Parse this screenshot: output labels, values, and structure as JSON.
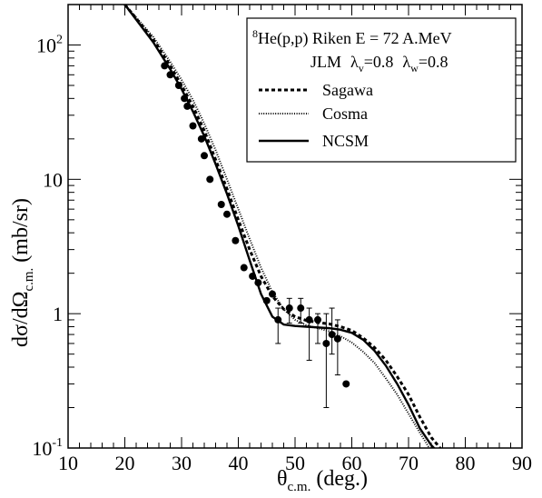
{
  "chart_data": {
    "type": "line",
    "title": "",
    "xlabel": "θc.m. (deg.)",
    "xlabel_main": "θ",
    "xlabel_sub": "c.m.",
    "xlabel_tail": " (deg.)",
    "ylabel": "dσ/dΩc.m. (mb/sr)",
    "ylabel_main": "dσ/dΩ",
    "ylabel_sub": "c.m.",
    "ylabel_tail": "  (mb/sr)",
    "xlim": [
      10,
      90
    ],
    "ylim": [
      0.1,
      200
    ],
    "yscale": "log",
    "x_ticks": [
      "10",
      "20",
      "30",
      "40",
      "50",
      "60",
      "70",
      "80",
      "90"
    ],
    "y_ticks": [
      {
        "value": 0.1,
        "base": "10",
        "exp": "-1"
      },
      {
        "value": 1,
        "base": "1",
        "exp": ""
      },
      {
        "value": 10,
        "base": "10",
        "exp": ""
      },
      {
        "value": 100,
        "base": "10",
        "exp": "2"
      }
    ],
    "legend": {
      "position": "top-right",
      "line1_sup": "8",
      "line1_text": "He(p,p) Riken  E = 72 A.MeV",
      "line2_jlm": "JLM",
      "line2_lv": "λ",
      "line2_lv_sub": "v",
      "line2_lv_val": "=0.8",
      "line2_lw": "λ",
      "line2_lw_sub": "w",
      "line2_lw_val": "=0.8"
    },
    "series": [
      {
        "name": "Sagawa",
        "style": "dashed",
        "x": [
          20,
          25,
          28,
          30,
          32,
          34,
          36,
          38,
          40,
          42,
          44,
          46,
          48,
          50,
          52,
          54,
          56,
          58,
          60,
          62,
          64,
          66,
          68,
          70,
          72,
          74,
          76
        ],
        "y": [
          200,
          110,
          70,
          50,
          35,
          23,
          14,
          8.5,
          5,
          3.0,
          1.9,
          1.35,
          1.08,
          0.95,
          0.89,
          0.86,
          0.84,
          0.8,
          0.75,
          0.66,
          0.56,
          0.45,
          0.34,
          0.25,
          0.17,
          0.12,
          0.095
        ]
      },
      {
        "name": "Cosma",
        "style": "dotted",
        "x": [
          20,
          25,
          28,
          30,
          32,
          34,
          36,
          38,
          40,
          42,
          44,
          46,
          48,
          50,
          52,
          54,
          56,
          58,
          60,
          62,
          64,
          66,
          68,
          70,
          72,
          74
        ],
        "y": [
          200,
          115,
          75,
          55,
          39,
          26,
          16.5,
          10,
          6,
          3.6,
          2.2,
          1.45,
          1.08,
          0.9,
          0.82,
          0.78,
          0.74,
          0.68,
          0.61,
          0.52,
          0.43,
          0.33,
          0.25,
          0.18,
          0.13,
          0.095
        ]
      },
      {
        "name": "NCSM",
        "style": "solid",
        "x": [
          20,
          25,
          28,
          30,
          32,
          34,
          36,
          38,
          40,
          42,
          44,
          46,
          48,
          50,
          52,
          54,
          56,
          58,
          60,
          62,
          64,
          66,
          68,
          70,
          72,
          74,
          75
        ],
        "y": [
          200,
          105,
          66,
          47,
          32,
          21,
          13,
          7.8,
          4.5,
          2.5,
          1.4,
          0.95,
          0.83,
          0.81,
          0.8,
          0.79,
          0.78,
          0.76,
          0.72,
          0.64,
          0.53,
          0.41,
          0.3,
          0.21,
          0.14,
          0.105,
          0.095
        ]
      }
    ],
    "data_points": {
      "name": "Riken data",
      "points": [
        {
          "x": 27,
          "y": 70
        },
        {
          "x": 28,
          "y": 60
        },
        {
          "x": 29.5,
          "y": 50
        },
        {
          "x": 30.5,
          "y": 40
        },
        {
          "x": 31,
          "y": 35
        },
        {
          "x": 32,
          "y": 25
        },
        {
          "x": 33.5,
          "y": 20
        },
        {
          "x": 34,
          "y": 15
        },
        {
          "x": 35,
          "y": 10
        },
        {
          "x": 37,
          "y": 6.5
        },
        {
          "x": 38,
          "y": 5.5
        },
        {
          "x": 39.5,
          "y": 3.5
        },
        {
          "x": 41,
          "y": 2.2
        },
        {
          "x": 42.5,
          "y": 1.9
        },
        {
          "x": 43.5,
          "y": 1.7
        },
        {
          "x": 45,
          "y": 1.25
        },
        {
          "x": 46,
          "y": 1.4
        },
        {
          "x": 47,
          "y": 0.9,
          "err_lo": 0.6,
          "err_hi": 1.1
        },
        {
          "x": 49,
          "y": 1.1,
          "err_lo": 0.85,
          "err_hi": 1.3
        },
        {
          "x": 51,
          "y": 1.1,
          "err_lo": 0.85,
          "err_hi": 1.3
        },
        {
          "x": 52.5,
          "y": 0.9,
          "err_lo": 0.45,
          "err_hi": 1.1
        },
        {
          "x": 54,
          "y": 0.9,
          "err_lo": 0.6,
          "err_hi": 1.0
        },
        {
          "x": 55.5,
          "y": 0.6,
          "err_lo": 0.2,
          "err_hi": 1.0
        },
        {
          "x": 56.5,
          "y": 0.7,
          "err_lo": 0.5,
          "err_hi": 1.1
        },
        {
          "x": 57.5,
          "y": 0.65,
          "err_lo": 0.35,
          "err_hi": 0.9
        },
        {
          "x": 59,
          "y": 0.3
        }
      ]
    }
  }
}
